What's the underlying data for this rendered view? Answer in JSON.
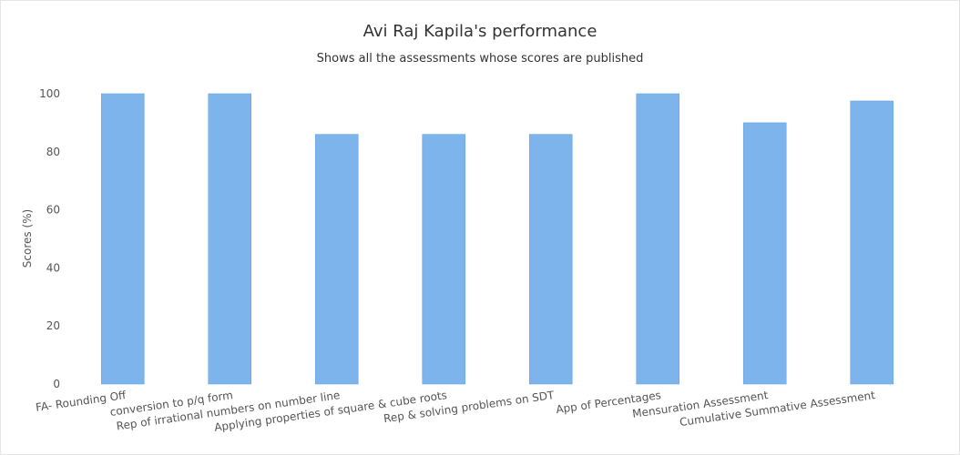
{
  "chart_data": {
    "type": "bar",
    "title": "Avi Raj Kapila's performance",
    "subtitle": "Shows all the assessments whose scores are published",
    "xlabel": "",
    "ylabel": "Scores (%)",
    "ylim": [
      0,
      100
    ],
    "yticks": [
      0,
      20,
      40,
      60,
      80,
      100
    ],
    "grid": false,
    "legend": "none",
    "bar_color": "#7cb4eb",
    "categories": [
      "FA- Rounding Off",
      "conversion to p/q form",
      "Rep of irrational numbers on number line",
      "Applying properties of square & cube roots",
      "Rep & solving problems on SDT",
      "App of Percentages",
      "Mensuration Assessment",
      "Cumulative Summative Assessment"
    ],
    "values": [
      100,
      100,
      86,
      86,
      86,
      100,
      90,
      97.5
    ]
  }
}
